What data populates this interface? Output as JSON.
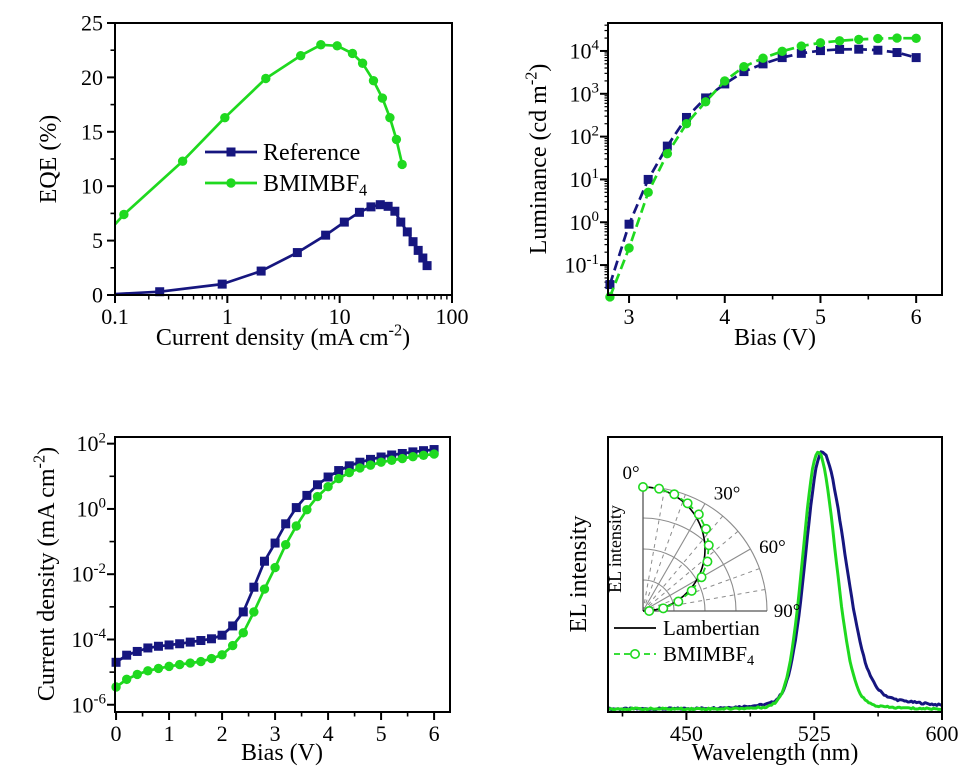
{
  "colors": {
    "reference": "#16167F",
    "bmimbf4": "#1FD91F",
    "lambertian": "#000000",
    "grid": "#8C8C8C",
    "axis": "#000000",
    "background": "#ffffff"
  },
  "chart_data": [
    {
      "id": "eqe",
      "type": "line",
      "xscale": "log",
      "yscale": "linear",
      "xlim": [
        0.1,
        100
      ],
      "ylim": [
        0,
        25
      ],
      "xlabel": [
        {
          "t": "Current density (mA cm"
        },
        {
          "t": "-2",
          "sup": true
        },
        {
          "t": ")"
        }
      ],
      "ylabel": [
        {
          "t": "EQE (%)"
        }
      ],
      "xticks": [
        0.1,
        1,
        10,
        100
      ],
      "xtick_labels": [
        "0.1",
        "1",
        "10",
        "100"
      ],
      "yticks": [
        0,
        5,
        10,
        15,
        20,
        25
      ],
      "yminors": [
        2.5,
        7.5,
        12.5,
        17.5,
        22.5
      ],
      "grid": false,
      "legend_position": "center-left",
      "series": [
        {
          "name": "Reference",
          "label": [
            {
              "t": "Reference"
            }
          ],
          "color": "reference",
          "marker": "square",
          "line": "solid",
          "marker_from": 1,
          "x": [
            0.1,
            0.25,
            0.9,
            2.0,
            4.2,
            7.5,
            11,
            15,
            19,
            23,
            27,
            31,
            35,
            40,
            45,
            50,
            55,
            60
          ],
          "y": [
            0.08,
            0.3,
            1.0,
            2.2,
            3.9,
            5.5,
            6.7,
            7.6,
            8.1,
            8.3,
            8.15,
            7.7,
            6.7,
            5.8,
            4.9,
            4.1,
            3.4,
            2.7
          ]
        },
        {
          "name": "BMIMBF4",
          "label": [
            {
              "t": "BMIMBF"
            },
            {
              "t": "4",
              "sub": true
            }
          ],
          "color": "bmimbf4",
          "marker": "circle",
          "line": "solid",
          "marker_from": 1,
          "x": [
            0.1,
            0.12,
            0.4,
            0.95,
            2.2,
            4.5,
            6.8,
            9.5,
            13,
            16,
            20,
            24,
            28,
            32,
            36
          ],
          "y": [
            6.5,
            7.4,
            12.3,
            16.3,
            19.9,
            22.0,
            23.0,
            22.9,
            22.2,
            21.3,
            19.7,
            18.1,
            16.3,
            14.3,
            12.0
          ]
        }
      ]
    },
    {
      "id": "luminance",
      "type": "line",
      "xscale": "linear",
      "yscale": "log",
      "xlim": [
        2.78,
        6.27
      ],
      "ylim": [
        0.02,
        45000
      ],
      "xlabel": [
        {
          "t": "Bias (V)"
        }
      ],
      "ylabel": [
        {
          "t": "Luminance (cd m"
        },
        {
          "t": "-2",
          "sup": true
        },
        {
          "t": ")"
        }
      ],
      "xticks": [
        3,
        4,
        5,
        6
      ],
      "xtick_labels": [
        "3",
        "4",
        "5",
        "6"
      ],
      "xminors": [
        3.5,
        4.5,
        5.5
      ],
      "ytick_exps": [
        -1,
        0,
        1,
        2,
        3,
        4
      ],
      "log_subminors": true,
      "grid": false,
      "series": [
        {
          "name": "Reference",
          "color": "reference",
          "marker": "square",
          "line": "dashed",
          "x": [
            2.8,
            3.0,
            3.2,
            3.4,
            3.6,
            3.8,
            4.0,
            4.2,
            4.4,
            4.6,
            4.8,
            5.0,
            5.2,
            5.4,
            5.6,
            5.8,
            6.0
          ],
          "y": [
            0.035,
            0.9,
            10,
            60,
            280,
            800,
            1700,
            3300,
            5000,
            7000,
            8800,
            10200,
            10900,
            11000,
            10400,
            9200,
            7000
          ]
        },
        {
          "name": "BMIMBF4",
          "color": "bmimbf4",
          "marker": "circle",
          "line": "dashed",
          "x": [
            2.8,
            3.0,
            3.2,
            3.4,
            3.6,
            3.8,
            4.0,
            4.2,
            4.4,
            4.6,
            4.8,
            5.0,
            5.2,
            5.4,
            5.6,
            5.8,
            6.0
          ],
          "y": [
            0.018,
            0.25,
            5,
            40,
            200,
            650,
            2000,
            4300,
            6800,
            9800,
            13000,
            15500,
            17300,
            18600,
            19500,
            20000,
            19800
          ]
        }
      ]
    },
    {
      "id": "jv",
      "type": "line",
      "xscale": "linear",
      "yscale": "log",
      "xlim": [
        -0.02,
        6.3
      ],
      "ylim": [
        6e-07,
        160.0
      ],
      "xlabel": [
        {
          "t": "Bias (V)"
        }
      ],
      "ylabel": [
        {
          "t": "Current density (mA cm"
        },
        {
          "t": "-2",
          "sup": true
        },
        {
          "t": ")"
        }
      ],
      "xticks": [
        0,
        1,
        2,
        3,
        4,
        5,
        6
      ],
      "xtick_labels": [
        "0",
        "1",
        "2",
        "3",
        "4",
        "5",
        "6"
      ],
      "xminors": [
        0.5,
        1.5,
        2.5,
        3.5,
        4.5,
        5.5
      ],
      "ytick_exps": [
        -6,
        -4,
        -2,
        0,
        2
      ],
      "yminor_exps": [
        -5,
        -3,
        -1,
        1
      ],
      "grid": false,
      "series": [
        {
          "name": "Reference",
          "color": "reference",
          "marker": "square",
          "line": "solid",
          "x": [
            0,
            0.2,
            0.4,
            0.6,
            0.8,
            1.0,
            1.2,
            1.4,
            1.6,
            1.8,
            2.0,
            2.2,
            2.4,
            2.6,
            2.8,
            3.0,
            3.2,
            3.4,
            3.6,
            3.8,
            4.0,
            4.2,
            4.4,
            4.6,
            4.8,
            5.0,
            5.2,
            5.4,
            5.6,
            5.8,
            6.0
          ],
          "y": [
            2e-05,
            3.3e-05,
            4.3e-05,
            5.5e-05,
            6.2e-05,
            6.8e-05,
            7.4e-05,
            8.3e-05,
            9.3e-05,
            0.000105,
            0.000135,
            0.00026,
            0.0007,
            0.004,
            0.025,
            0.09,
            0.35,
            1.1,
            2.6,
            5.5,
            9.5,
            15,
            21,
            27,
            33,
            39,
            45,
            50,
            56,
            61,
            66
          ]
        },
        {
          "name": "BMIMBF4",
          "color": "bmimbf4",
          "marker": "circle",
          "line": "solid",
          "x": [
            0,
            0.2,
            0.4,
            0.6,
            0.8,
            1.0,
            1.2,
            1.4,
            1.6,
            1.8,
            2.0,
            2.2,
            2.4,
            2.6,
            2.8,
            3.0,
            3.2,
            3.4,
            3.6,
            3.8,
            4.0,
            4.2,
            4.4,
            4.6,
            4.8,
            5.0,
            5.2,
            5.4,
            5.6,
            5.8,
            6.0
          ],
          "y": [
            3.5e-06,
            6e-06,
            8.5e-06,
            1.1e-05,
            1.3e-05,
            1.5e-05,
            1.7e-05,
            1.9e-05,
            2.1e-05,
            2.6e-05,
            3.4e-05,
            6.5e-05,
            0.00016,
            0.0007,
            0.0035,
            0.016,
            0.08,
            0.3,
            0.95,
            2.4,
            4.8,
            8.5,
            13,
            18,
            22,
            27,
            31,
            35,
            40,
            44,
            48
          ]
        }
      ]
    },
    {
      "id": "el",
      "type": "line",
      "xscale": "linear",
      "yscale": "linear",
      "xlim": [
        404,
        600
      ],
      "ylim": [
        0,
        1.07
      ],
      "xlabel": [
        {
          "t": "Wavelength (nm)"
        }
      ],
      "ylabel": [
        {
          "t": "EL intensity"
        }
      ],
      "xticks": [
        450,
        525,
        600
      ],
      "xtick_labels": [
        "450",
        "525",
        "600"
      ],
      "xminors": [
        412.5,
        487.5,
        562.5
      ],
      "yticks": [],
      "grid": false,
      "spectra": [
        {
          "name": "Reference",
          "color": "reference",
          "peak_nm": 529.5,
          "sigma_left": 9.3,
          "sigma_right": 13.0,
          "tail": {
            "amp": 0.045,
            "center": 547,
            "sigma": 36
          },
          "baseline": 0.012
        },
        {
          "name": "BMIMBF4",
          "color": "bmimbf4",
          "peak_nm": 527.3,
          "sigma_left": 8.8,
          "sigma_right": 10.0,
          "tail": {
            "amp": 0.02,
            "center": 533,
            "sigma": 24
          },
          "baseline": 0.012
        }
      ],
      "inset_polar": {
        "ylabel": [
          {
            "t": "EL intensity"
          }
        ],
        "angle_labels": [
          "0°",
          "30°",
          "60°",
          "90°"
        ],
        "arc_fractions": [
          0.25,
          0.5,
          0.75,
          1.0
        ],
        "solid_spokes_deg": [
          30,
          60
        ],
        "dashed_spokes_deg": [
          10,
          20,
          40,
          50,
          70,
          80
        ],
        "series": [
          {
            "name": "Lambertian",
            "label": [
              {
                "t": "Lambertian"
              }
            ],
            "color": "lambertian",
            "line": "solid",
            "model": "cosine"
          },
          {
            "name": "BMIMBF4",
            "label": [
              {
                "t": "BMIMBF"
              },
              {
                "t": "4",
                "sub": true
              }
            ],
            "color": "bmimbf4",
            "line": "dashed",
            "marker": "open-circle",
            "angles_deg": [
              0,
              7.5,
              15,
              22.5,
              30,
              37.5,
              45,
              52.5,
              60,
              67.5,
              75,
              82.5,
              90
            ],
            "r": [
              1.0,
              0.995,
              0.975,
              0.94,
              0.9,
              0.835,
              0.75,
              0.655,
              0.545,
              0.425,
              0.295,
              0.165,
              0.05
            ]
          }
        ]
      }
    }
  ]
}
